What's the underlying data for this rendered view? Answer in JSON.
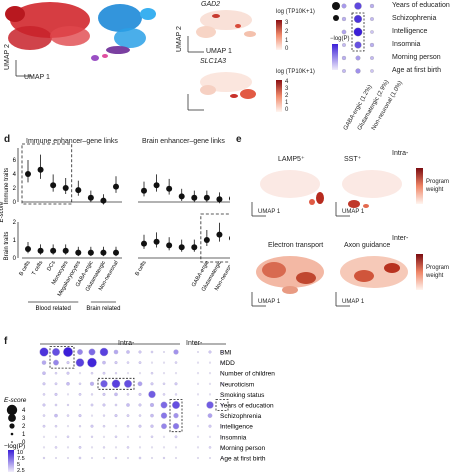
{
  "panel_c": {
    "gene_labels": [
      "GAD2",
      "SLC1A3"
    ],
    "colorbar_title": "log (TP10K+1)",
    "colorbar_ticks": [
      "3",
      "2",
      "1",
      "0"
    ],
    "colorbar2_ticks": [
      "4",
      "3",
      "2",
      "1",
      "0"
    ],
    "umap_x": "UMAP 1",
    "umap_y": "UMAP 2",
    "dot_traits": [
      "Years of education",
      "Schizophrenia",
      "Intelligence",
      "Insomnia",
      "Morning person",
      "Age at first birth"
    ],
    "dot_legend_title": "−log(P)",
    "dot_columns": [
      "GABA-ergic (1.2%)",
      "Glutamatergic (2.9%)",
      "Non-neuronal (1.0%)"
    ]
  },
  "panel_d": {
    "letter": "d",
    "header_immune": "Immune enhancer–gene links",
    "header_brain": "Brain enhancer–gene links",
    "y_axis": "E-score",
    "row_labels": [
      "Immune traits",
      "Brain traits"
    ],
    "yticks_top": [
      "6",
      "4",
      "2",
      "0"
    ],
    "yticks_bottom": [
      "2",
      "1",
      "0"
    ],
    "groups": [
      "Blood related",
      "Brain related"
    ]
  },
  "panel_e": {
    "letter": "e",
    "row_labels": [
      "Intra-",
      "Inter-"
    ],
    "titles": [
      "LAMP5⁺",
      "SST⁺",
      "Electron transport",
      "Axon guidance"
    ],
    "colorbar_title": "Program weight",
    "umap_x": "UMAP 1",
    "umap_y": "UMAP 2"
  },
  "panel_f": {
    "letter": "f",
    "header_intra": "Intra-",
    "header_inter": "Inter-",
    "traits": [
      "BMI",
      "MDD",
      "Number of children",
      "Neuroticism",
      "Smoking status",
      "Years of education",
      "Schizophrenia",
      "Intelligence",
      "Insomnia",
      "Morning person",
      "Age at first birth"
    ],
    "size_legend_title": "E-score",
    "size_legend_values": [
      "4",
      "3",
      "2",
      "1",
      "0"
    ],
    "color_legend_title": "−log(P)",
    "color_legend_values": [
      "10",
      "7.5",
      "5",
      "2.5"
    ]
  },
  "chart_data": [
    {
      "type": "scatter",
      "panel": "d",
      "categories": [
        "B cells",
        "T cells",
        "DCs",
        "Monocytes",
        "Megakaryocytes",
        "GABA-ergic",
        "Glutamatergic",
        "Non-neuronal"
      ],
      "series": [
        {
          "name": "Immune traits",
          "link_type": "Immune enhancer–gene links",
          "values": [
            4.0,
            4.6,
            2.4,
            2.0,
            1.7,
            0.6,
            0.2,
            2.2
          ]
        },
        {
          "name": "Immune traits",
          "link_type": "Brain enhancer–gene links",
          "values": [
            1.6,
            2.4,
            1.9,
            0.8,
            0.6,
            0.6,
            0.4,
            0.5
          ]
        },
        {
          "name": "Brain traits",
          "link_type": "Immune enhancer–gene links",
          "values": [
            0.5,
            0.4,
            0.4,
            0.4,
            0.3,
            0.3,
            0.3,
            0.3
          ]
        },
        {
          "name": "Brain traits",
          "link_type": "Brain enhancer–gene links",
          "values": [
            0.8,
            0.9,
            0.7,
            0.6,
            0.6,
            1.0,
            1.3,
            1.1
          ]
        }
      ]
    },
    {
      "type": "scatter",
      "panel": "f",
      "rows": [
        "BMI",
        "MDD",
        "Number of children",
        "Neuroticism",
        "Smoking status",
        "Years of education",
        "Schizophrenia",
        "Intelligence",
        "Insomnia",
        "Morning person",
        "Age at first birth"
      ],
      "columns": 15,
      "e_score_by_row": [
        [
          3.2,
          2.8,
          3.5,
          2.0,
          2.4,
          3.0,
          1.5,
          1.2,
          1.0,
          0.8,
          0.6,
          1.8,
          0.5,
          1.0,
          0.8
        ],
        [
          1.5,
          2.0,
          1.0,
          3.0,
          3.4,
          1.2,
          1.0,
          0.8,
          0.9,
          0.6,
          0.5,
          0.8,
          0.4,
          0.5,
          0.6
        ],
        [
          1.2,
          0.8,
          1.0,
          0.6,
          0.8,
          0.9,
          0.7,
          0.6,
          0.5,
          0.8,
          0.4,
          0.6,
          0.6,
          0.5,
          0.4
        ],
        [
          1.0,
          0.9,
          1.2,
          0.8,
          1.4,
          2.6,
          3.0,
          2.8,
          1.6,
          1.0,
          0.8,
          1.0,
          0.5,
          0.6,
          0.8
        ],
        [
          0.8,
          1.0,
          0.6,
          0.9,
          0.7,
          1.0,
          1.2,
          0.8,
          1.0,
          2.6,
          0.8,
          0.7,
          0.4,
          0.6,
          0.5
        ],
        [
          1.0,
          0.8,
          0.7,
          0.6,
          0.9,
          1.0,
          0.8,
          1.2,
          1.0,
          1.4,
          2.4,
          2.8,
          0.6,
          2.6,
          0.8
        ],
        [
          0.8,
          1.2,
          0.8,
          1.0,
          0.6,
          0.7,
          1.0,
          0.9,
          0.8,
          1.2,
          2.2,
          1.8,
          0.5,
          1.6,
          0.6
        ],
        [
          0.9,
          0.8,
          0.6,
          0.7,
          1.0,
          0.8,
          0.6,
          0.8,
          1.0,
          1.1,
          2.0,
          2.2,
          0.5,
          1.0,
          0.7
        ],
        [
          0.6,
          0.5,
          0.8,
          0.6,
          0.7,
          0.6,
          0.8,
          0.5,
          0.6,
          0.8,
          0.6,
          0.9,
          0.4,
          0.5,
          0.4
        ],
        [
          0.5,
          0.8,
          0.6,
          0.9,
          0.5,
          0.7,
          0.6,
          0.8,
          0.5,
          0.6,
          0.5,
          0.6,
          0.4,
          0.8,
          0.5
        ],
        [
          0.7,
          0.6,
          0.5,
          0.8,
          0.6,
          0.5,
          0.7,
          0.6,
          0.8,
          0.5,
          0.7,
          0.5,
          0.4,
          0.6,
          0.5
        ]
      ],
      "highlight_boxes": [
        {
          "rows": [
            "BMI",
            "MDD"
          ],
          "columns": [
            1,
            2
          ]
        },
        {
          "rows": [
            "Neuroticism"
          ],
          "columns": [
            5,
            7
          ]
        },
        {
          "rows": [
            "Years of education",
            "Schizophrenia",
            "Intelligence"
          ],
          "columns": [
            11,
            11
          ]
        },
        {
          "rows": [
            "Years of education"
          ],
          "columns": [
            14,
            14
          ]
        }
      ]
    },
    {
      "type": "scatter",
      "panel": "c",
      "rows": [
        "Years of education",
        "Schizophrenia",
        "Intelligence",
        "Insomnia",
        "Morning person",
        "Age at first birth"
      ],
      "columns": [
        "GABA-ergic (1.2%)",
        "Glutamatergic (2.9%)",
        "Non-neuronal (1.0%)"
      ],
      "e_score": [
        [
          0.8,
          1.6,
          0.6
        ],
        [
          0.6,
          1.8,
          0.5
        ],
        [
          0.7,
          2.0,
          0.4
        ],
        [
          0.5,
          1.5,
          0.6
        ],
        [
          0.6,
          0.8,
          0.5
        ],
        [
          0.5,
          0.9,
          0.4
        ]
      ]
    }
  ]
}
